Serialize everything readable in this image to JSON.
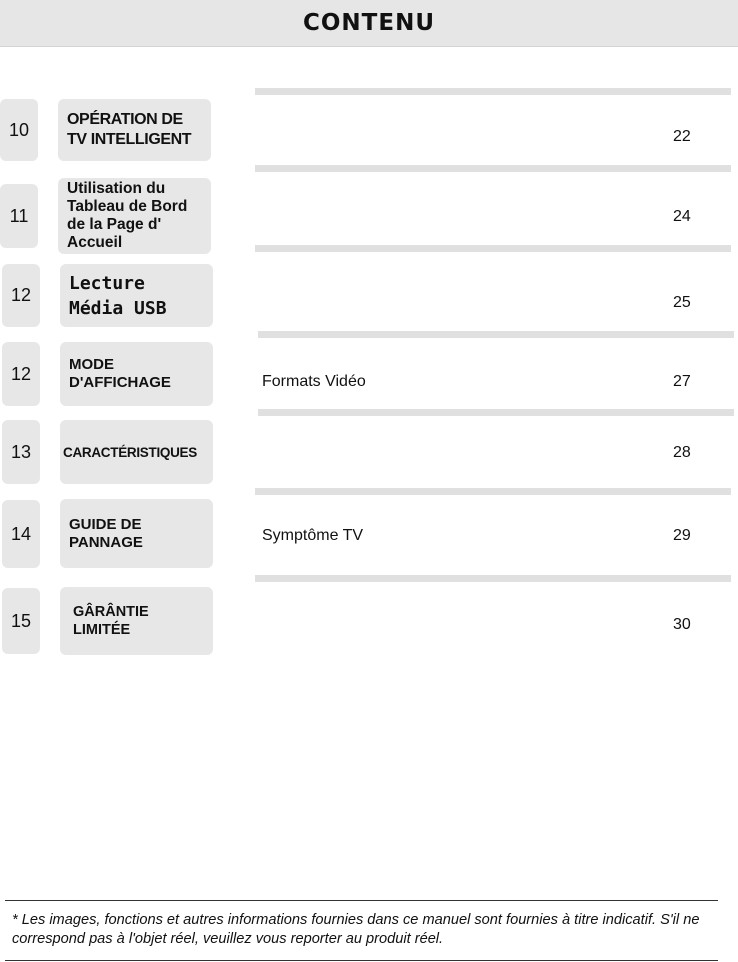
{
  "header": {
    "title": "CONTENU"
  },
  "sections": [
    {
      "number": "10",
      "title": "OPÉRATION DE\nTV INTELLIGENT",
      "item": "",
      "page": "22"
    },
    {
      "number": "11",
      "title": "Utilisation du\nTableau de Bord\nde la Page d'\nAccueil",
      "item": "",
      "page": "24"
    },
    {
      "number": "12",
      "title": "Lecture\nMédia USB",
      "item": "",
      "page": "25"
    },
    {
      "number": "12",
      "title": "MODE\nD'AFFICHAGE",
      "item": "Formats Vidéo",
      "page": "27"
    },
    {
      "number": "13",
      "title": "CARACTÉRISTIQUES",
      "item": "",
      "page": "28"
    },
    {
      "number": "14",
      "title": "GUIDE DE\nPANNAGE",
      "item": "Symptôme TV",
      "page": "29"
    },
    {
      "number": "15",
      "title": "GÂRÂNTIE\nLIMITÉE",
      "item": "",
      "page": "30"
    }
  ],
  "footnote": "* Les images, fonctions et autres informations fournies dans ce manuel sont fournies à titre indicatif. S'il ne correspond pas à l'objet réel, veuillez vous reporter au produit réel."
}
